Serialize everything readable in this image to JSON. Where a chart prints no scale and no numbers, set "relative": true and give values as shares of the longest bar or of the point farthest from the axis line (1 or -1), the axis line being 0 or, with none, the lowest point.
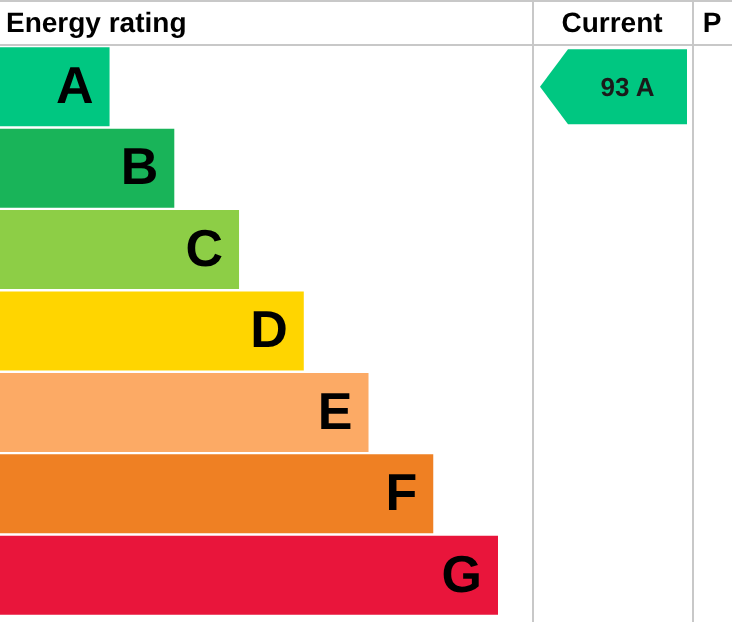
{
  "chart_data": {
    "type": "bar",
    "orientation": "horizontal",
    "relative": true,
    "title": "Energy rating",
    "categories": [
      "A",
      "B",
      "C",
      "D",
      "E",
      "F",
      "G"
    ],
    "values": [
      0.22,
      0.35,
      0.48,
      0.61,
      0.74,
      0.87,
      1
    ],
    "colors": [
      "#00c781",
      "#19b459",
      "#8dce46",
      "#ffd500",
      "#fcaa65",
      "#ef8023",
      "#e9153b"
    ],
    "annotations": [
      "Current",
      "P",
      "93 A"
    ]
  }
}
